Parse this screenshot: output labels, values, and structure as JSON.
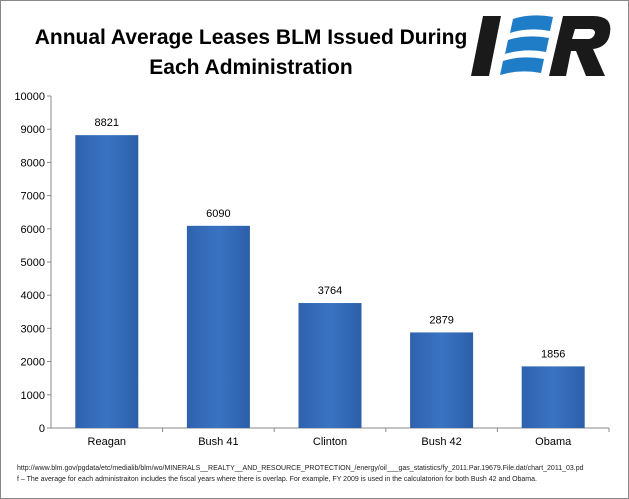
{
  "logo_text": "IER",
  "chart_data": {
    "type": "bar",
    "title": "Annual Average Leases BLM Issued During Each Administration",
    "categories": [
      "Reagan",
      "Bush 41",
      "Clinton",
      "Bush 42",
      "Obama"
    ],
    "values": [
      8821,
      6090,
      3764,
      2879,
      1856
    ],
    "ylim": [
      0,
      10000
    ],
    "yticks": [
      0,
      1000,
      2000,
      3000,
      4000,
      5000,
      6000,
      7000,
      8000,
      9000,
      10000
    ],
    "xlabel": "",
    "ylabel": "",
    "grid": false,
    "bar_color": "#3a73c3",
    "data_labels": true
  },
  "footnote": {
    "line1": "http://www.blm.gov/pgdata/etc/medialib/blm/wo/MINERALS__REALTY__AND_RESOURCE_PROTECTION_/energy/oil___gas_statistics/fy_2011.Par.19679.File.dat/chart_2011_03.pd",
    "line2": "f – The average for each administraiton includes the fiscal years where there is overlap. For example, FY 2009 is used in the calculatorion for both Bush 42 and Obama."
  }
}
